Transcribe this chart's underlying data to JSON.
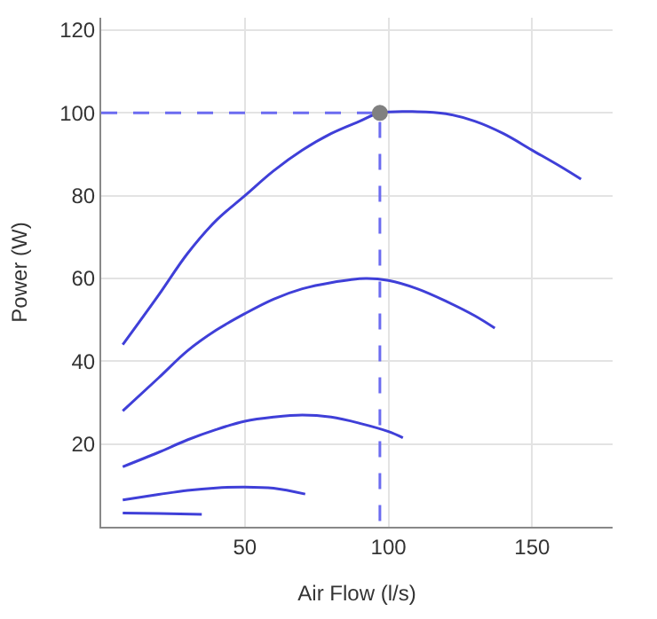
{
  "chart_data": {
    "type": "line",
    "xlabel": "Air Flow (l/s)",
    "ylabel": "Power (W)",
    "xlim": [
      0,
      178
    ],
    "ylim": [
      0,
      123
    ],
    "xticks": [
      50,
      100,
      150
    ],
    "yticks": [
      20,
      40,
      60,
      80,
      100,
      120
    ],
    "grid": true,
    "marker": "none",
    "line_style": "solid",
    "series": [
      {
        "color": "#3f3fd8",
        "x": [
          7.5,
          20,
          30,
          40,
          50,
          60,
          70,
          80,
          90,
          97,
          110,
          120,
          130,
          140,
          150,
          160,
          167
        ],
        "values": [
          44,
          56,
          66,
          74,
          80,
          86,
          91,
          95,
          98,
          100,
          100.3,
          99.8,
          98,
          95,
          91,
          87,
          84
        ]
      },
      {
        "color": "#3f3fd8",
        "x": [
          7.5,
          20,
          30,
          40,
          50,
          60,
          70,
          80,
          92,
          100,
          110,
          120,
          130,
          137
        ],
        "values": [
          28,
          36,
          42.5,
          47.5,
          51.5,
          55,
          57.5,
          59,
          60,
          59.5,
          57.5,
          54.5,
          51,
          48
        ]
      },
      {
        "color": "#3f3fd8",
        "x": [
          7.5,
          20,
          30,
          40,
          50,
          60,
          70,
          80,
          90,
          100,
          105
        ],
        "values": [
          14.5,
          18,
          21,
          23.5,
          25.5,
          26.5,
          27,
          26.5,
          25,
          23,
          21.5
        ]
      },
      {
        "color": "#3f3fd8",
        "x": [
          7.5,
          20,
          30,
          40,
          50,
          60,
          71
        ],
        "values": [
          6.5,
          7.8,
          8.8,
          9.4,
          9.6,
          9.3,
          7.9
        ]
      },
      {
        "color": "#3f3fd8",
        "x": [
          7.5,
          20,
          35
        ],
        "values": [
          3.3,
          3.2,
          3.0
        ]
      },
      {
        "color": "#6b6bf0",
        "line_style": "dashed",
        "x": [
          0,
          97,
          97
        ],
        "values": [
          100,
          100,
          0
        ]
      },
      {
        "type": "scatter",
        "color": "#808080",
        "marker": "circle",
        "x": [
          97
        ],
        "values": [
          100
        ]
      }
    ]
  }
}
